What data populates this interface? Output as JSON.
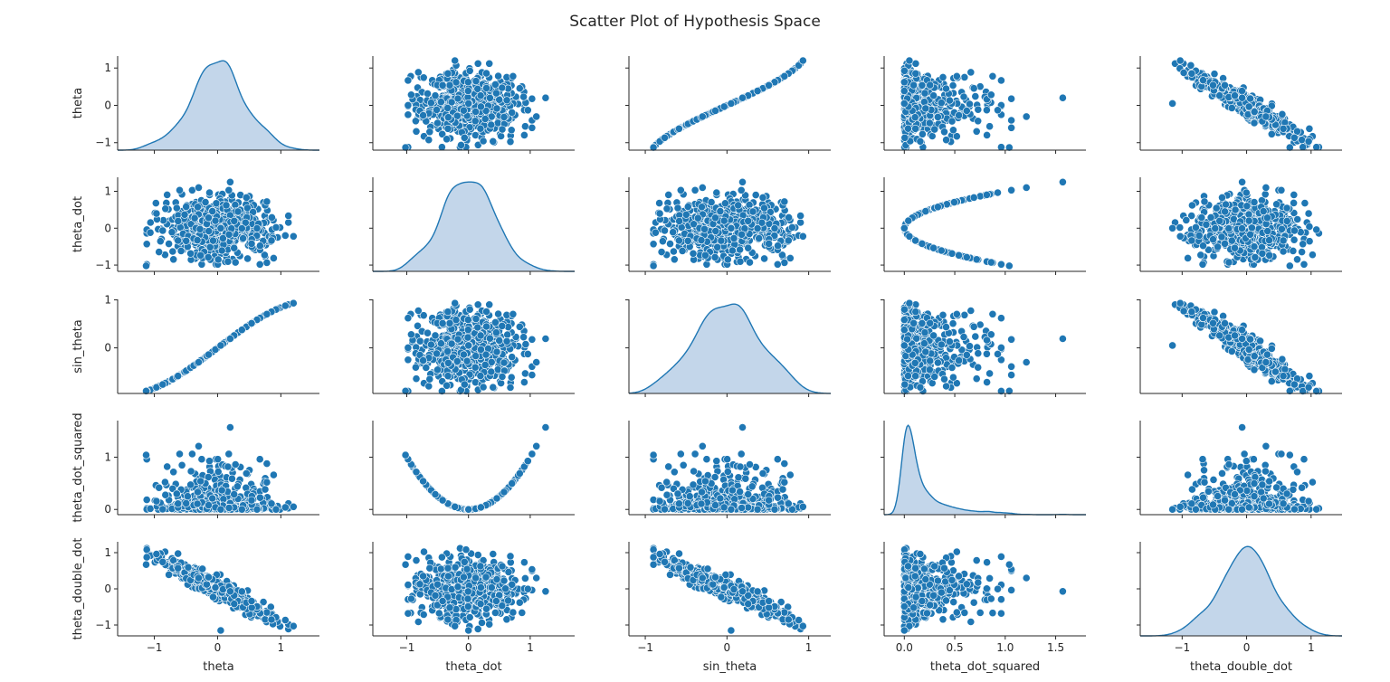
{
  "chart_data": {
    "type": "scatter",
    "title": "Scatter Plot of Hypothesis Space",
    "variables": [
      "theta",
      "theta_dot",
      "sin_theta",
      "theta_dot_squared",
      "theta_double_dot"
    ],
    "diagonal": "kde",
    "off_diagonal": "scatter",
    "grid": false,
    "legend": "none",
    "colors": {
      "marker": "#1f77b4",
      "marker_edge": "#ffffff",
      "kde_line": "#1f77b4",
      "kde_fill": "#c3d6ea",
      "axis": "#262626"
    },
    "ranges": {
      "theta": [
        -1.58,
        1.61
      ],
      "theta_dot": [
        -1.55,
        1.72
      ],
      "sin_theta": [
        -1.2,
        1.27
      ],
      "theta_dot_squared": [
        -0.2,
        1.8
      ],
      "theta_double_dot": [
        -1.65,
        1.48
      ]
    },
    "y_ranges": {
      "theta": [
        -1.2,
        1.32
      ],
      "theta_dot": [
        -1.17,
        1.38
      ],
      "sin_theta": [
        -0.95,
        1.01
      ],
      "theta_dot_squared": [
        -0.1,
        1.7
      ],
      "theta_double_dot": [
        -1.3,
        1.3
      ]
    },
    "ticks": {
      "theta": {
        "values": [
          -1,
          0,
          1
        ],
        "labels": [
          "−1",
          "0",
          "1"
        ]
      },
      "theta_dot": {
        "values": [
          -1,
          0,
          1
        ],
        "labels": [
          "−1",
          "0",
          "1"
        ]
      },
      "sin_theta": {
        "values": [
          -1,
          0,
          1
        ],
        "labels": [
          "−1",
          "0",
          "1"
        ]
      },
      "theta_dot_squared": {
        "values": [
          0,
          0.5,
          1,
          1.5
        ],
        "labels": [
          "0.0",
          "0.5",
          "1.0",
          "1.5"
        ]
      },
      "theta_double_dot": {
        "values": [
          -1,
          0,
          1
        ],
        "labels": [
          "−1",
          "0",
          "1"
        ]
      }
    },
    "y_ticks": {
      "theta": {
        "values": [
          -1,
          0,
          1
        ],
        "labels": [
          "−1",
          "0",
          "1"
        ]
      },
      "theta_dot": {
        "values": [
          -1,
          0,
          1
        ],
        "labels": [
          "−1",
          "0",
          "1"
        ]
      },
      "sin_theta": {
        "values": [
          0,
          1
        ],
        "labels": [
          "0",
          "1"
        ]
      },
      "theta_dot_squared": {
        "values": [
          0,
          1
        ],
        "labels": [
          "0",
          "1"
        ]
      },
      "theta_double_dot": {
        "values": [
          -1,
          0,
          1
        ],
        "labels": [
          "−1",
          "0",
          "1"
        ]
      }
    },
    "sample_count": 600,
    "sample_seed": 7,
    "relations": {
      "sin_theta": "sin(theta)",
      "theta_dot_squared": "theta_dot^2",
      "theta_double_dot": "-0.9*theta + noise(0.13)"
    },
    "outliers": [
      {
        "theta": 0.2,
        "theta_dot": 1.25,
        "sin_theta": 0.19,
        "theta_dot_squared": 1.57,
        "theta_double_dot": -0.07
      },
      {
        "theta": 1.2,
        "theta_dot": -0.22,
        "sin_theta": 0.93,
        "theta_dot_squared": 0.05,
        "theta_double_dot": -1.03
      },
      {
        "theta": -1.13,
        "theta_dot": -1.02,
        "sin_theta": -0.9,
        "theta_dot_squared": 1.04,
        "theta_double_dot": 0.67
      },
      {
        "theta": 0.05,
        "theta_dot": 0.0,
        "sin_theta": 0.05,
        "theta_dot_squared": 0.0,
        "theta_double_dot": -1.15
      },
      {
        "theta": -0.3,
        "theta_dot": 1.1,
        "sin_theta": -0.3,
        "theta_dot_squared": 1.21,
        "theta_double_dot": 0.3
      }
    ]
  }
}
